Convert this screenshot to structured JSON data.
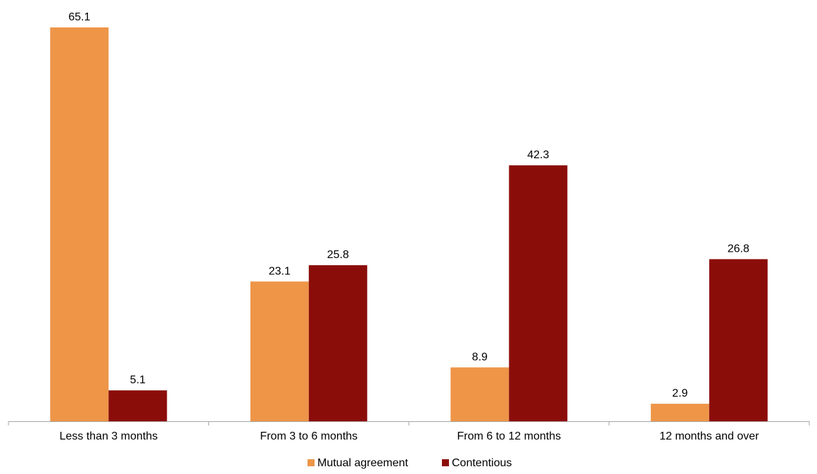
{
  "chart_data": {
    "type": "bar",
    "title": "",
    "xlabel": "",
    "ylabel": "",
    "categories": [
      "Less than 3 months",
      "From 3 to 6 months",
      "From 6 to 12 months",
      "12 months and over"
    ],
    "series": [
      {
        "name": "Mutual agreement",
        "values": [
          65.1,
          23.1,
          8.9,
          2.9
        ],
        "color": "#EE9548"
      },
      {
        "name": "Contentious",
        "values": [
          5.1,
          25.8,
          42.3,
          26.8
        ],
        "color": "#8B0D0A"
      }
    ],
    "value_labels": [
      [
        "65.1",
        "23.1",
        "8.9",
        "2.9"
      ],
      [
        "5.1",
        "25.8",
        "42.3",
        "26.8"
      ]
    ],
    "ylim": [
      0,
      70
    ],
    "grid": false,
    "y_axis_visible": false,
    "legend_position": "bottom-center",
    "axis_color": "#A6A6A6"
  }
}
